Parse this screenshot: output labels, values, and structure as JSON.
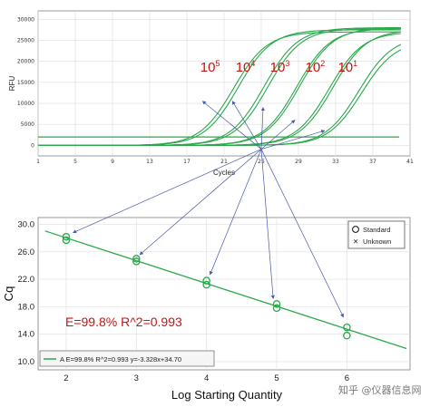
{
  "chart_data": [
    {
      "type": "line",
      "xlabel": "Cycles",
      "ylabel": "RFU",
      "xlim": [
        1,
        41
      ],
      "ylim": [
        -2500,
        32000
      ],
      "x_ticks": [
        "1",
        "5",
        "9",
        "13",
        "17",
        "21",
        "25",
        "29",
        "33",
        "37",
        "41"
      ],
      "y_ticks": [
        "0",
        "5000",
        "10000",
        "15000",
        "20000",
        "25000",
        "30000"
      ],
      "grid": true,
      "threshold": 2000,
      "dilution_labels": [
        {
          "base": "10",
          "exp": "5"
        },
        {
          "base": "10",
          "exp": "4"
        },
        {
          "base": "10",
          "exp": "3"
        },
        {
          "base": "10",
          "exp": "2"
        },
        {
          "base": "10",
          "exp": "1"
        }
      ],
      "series": [
        {
          "label_index": 0,
          "cq": 17.5,
          "plateau": 27000,
          "baseline": 0
        },
        {
          "label_index": 0,
          "cq": 18.0,
          "plateau": 27500,
          "baseline": 0
        },
        {
          "label_index": 1,
          "cq": 20.8,
          "plateau": 28000,
          "baseline": 0
        },
        {
          "label_index": 1,
          "cq": 21.2,
          "plateau": 27800,
          "baseline": 0
        },
        {
          "label_index": 2,
          "cq": 24.3,
          "plateau": 27800,
          "baseline": 0
        },
        {
          "label_index": 2,
          "cq": 24.6,
          "plateau": 28000,
          "baseline": 0
        },
        {
          "label_index": 3,
          "cq": 27.8,
          "plateau": 27000,
          "baseline": 0
        },
        {
          "label_index": 3,
          "cq": 28.2,
          "plateau": 27500,
          "baseline": 0
        },
        {
          "label_index": 4,
          "cq": 31.0,
          "plateau": 26000,
          "baseline": 0
        },
        {
          "label_index": 4,
          "cq": 31.3,
          "plateau": 25000,
          "baseline": 0
        }
      ],
      "color": "#2aa84a"
    },
    {
      "type": "scatter",
      "xlabel": "Log Starting Quantity",
      "ylabel": "Cq",
      "xlim": [
        1.6,
        6.9
      ],
      "ylim": [
        8.8,
        31.0
      ],
      "x_ticks": [
        "2",
        "3",
        "4",
        "5",
        "6"
      ],
      "y_ticks": [
        "10.0",
        "14.0",
        "18.0",
        "22.0",
        "26.0",
        "30.0"
      ],
      "grid": true,
      "legend": [
        "Standard",
        "Unknown"
      ],
      "legend_position": "top-right",
      "points": [
        {
          "x": 2,
          "y": 28.2
        },
        {
          "x": 2,
          "y": 27.7
        },
        {
          "x": 3,
          "y": 25.0
        },
        {
          "x": 3,
          "y": 24.6
        },
        {
          "x": 4,
          "y": 21.8
        },
        {
          "x": 4,
          "y": 21.2
        },
        {
          "x": 5,
          "y": 18.4
        },
        {
          "x": 5,
          "y": 17.8
        },
        {
          "x": 6,
          "y": 15.0
        },
        {
          "x": 6,
          "y": 13.8
        }
      ],
      "fit": {
        "slope": -3.328,
        "intercept": 34.7
      },
      "annotation": "E=99.8%  R^2=0.993",
      "fit_legend": "A  E=99.8% R^2=0.993 y=-3.328x+34.70",
      "color": "#2aa84a"
    }
  ],
  "watermark": "知乎 @仪器信息网"
}
